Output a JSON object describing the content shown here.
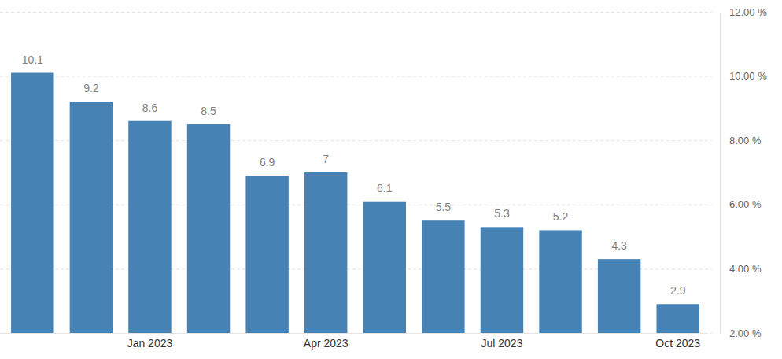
{
  "chart_data": {
    "type": "bar",
    "categories": [
      null,
      null,
      "Jan 2023",
      null,
      null,
      "Apr 2023",
      null,
      null,
      "Jul 2023",
      null,
      null,
      "Oct 2023"
    ],
    "values": [
      10.1,
      9.2,
      8.6,
      8.5,
      6.9,
      7,
      6.1,
      5.5,
      5.3,
      5.2,
      4.3,
      2.9
    ],
    "color": "#4682b4",
    "ylim": [
      2,
      12
    ],
    "yticks": [
      {
        "value": 2,
        "label": "2.00 %"
      },
      {
        "value": 4,
        "label": "4.00 %"
      },
      {
        "value": 6,
        "label": "6.00 %"
      },
      {
        "value": 8,
        "label": "8.00 %"
      },
      {
        "value": 10,
        "label": "10.00 %"
      },
      {
        "value": 12,
        "label": "12.00 %"
      }
    ],
    "grid": true,
    "data_labels": true
  }
}
